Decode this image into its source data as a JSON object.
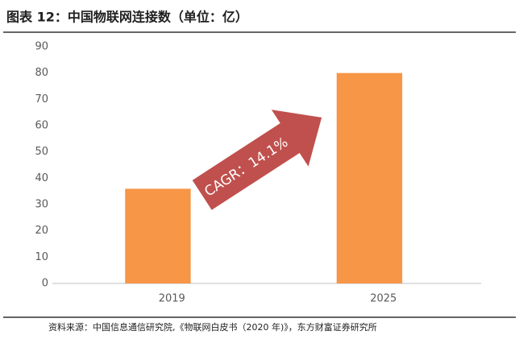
{
  "chart_data": {
    "type": "bar",
    "title": "图表 12：中国物联网连接数（单位：亿）",
    "categories": [
      "2019",
      "2025"
    ],
    "values": [
      36,
      80
    ],
    "color": "#f79646",
    "ylim": [
      0,
      90
    ],
    "yticks": [
      0,
      10,
      20,
      30,
      40,
      50,
      60,
      70,
      80,
      90
    ],
    "grid": false,
    "annotation": "CAGR：14.1%",
    "annotation_color": "#c0504d",
    "source": "资料来源：中国信息通信研究院,《物联网白皮书（2020 年)》，东方财富证券研究所"
  }
}
